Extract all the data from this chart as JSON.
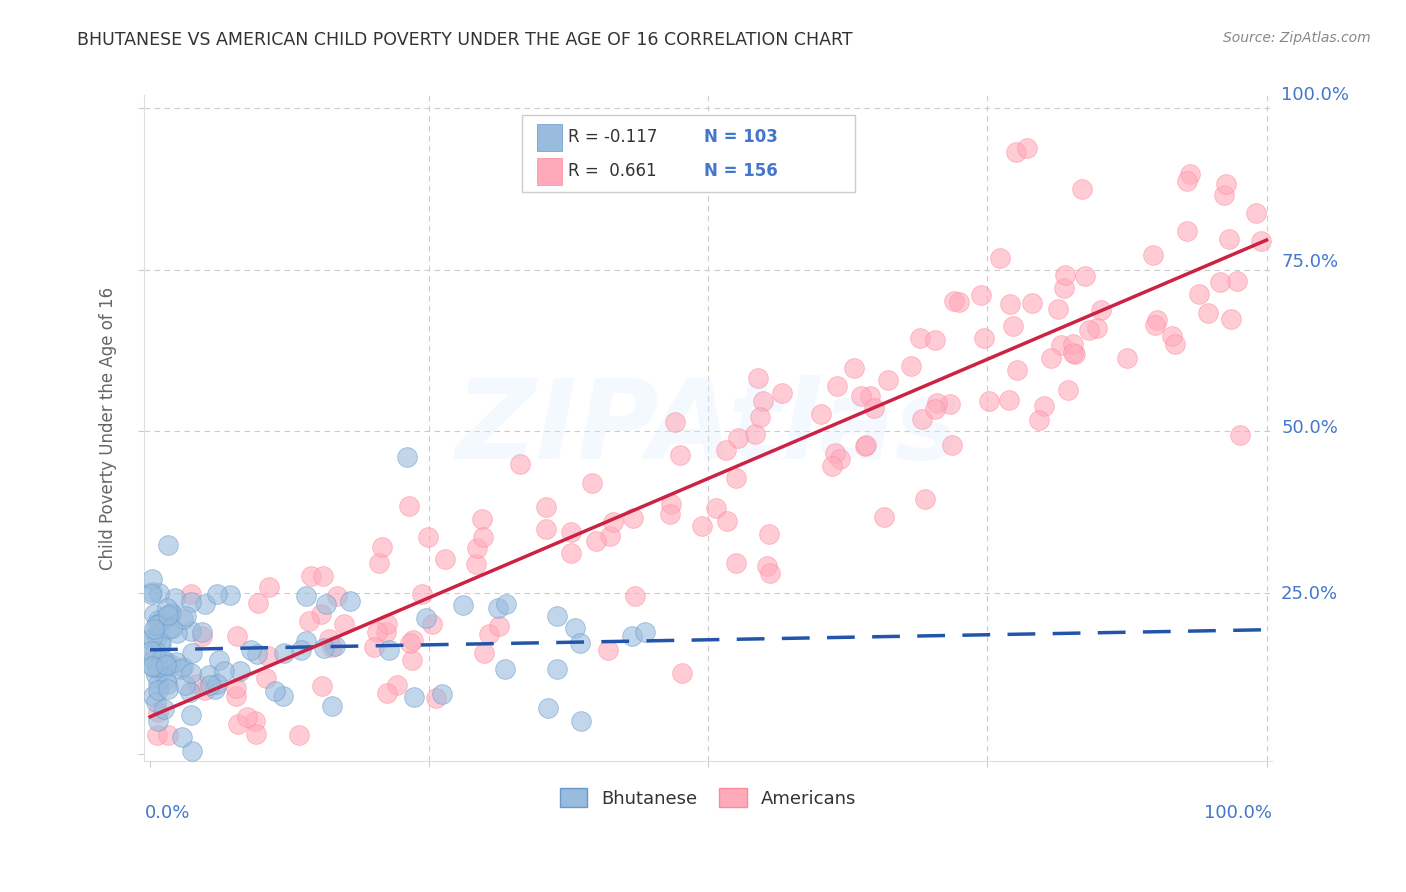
{
  "title": "BHUTANESE VS AMERICAN CHILD POVERTY UNDER THE AGE OF 16 CORRELATION CHART",
  "source": "Source: ZipAtlas.com",
  "ylabel": "Child Poverty Under the Age of 16",
  "bhutanese_color": "#99BBDD",
  "americans_color": "#FFAABB",
  "bhutanese_edge": "#6699CC",
  "americans_edge": "#FF8899",
  "regression_blue": "#2255AA",
  "regression_pink": "#CC2244",
  "background_color": "#FFFFFF",
  "grid_color": "#CCCCCC",
  "label_color": "#4477CC",
  "title_color": "#333333",
  "source_color": "#888888",
  "R_blue": -0.117,
  "N_blue": 103,
  "R_pink": 0.661,
  "N_pink": 156
}
